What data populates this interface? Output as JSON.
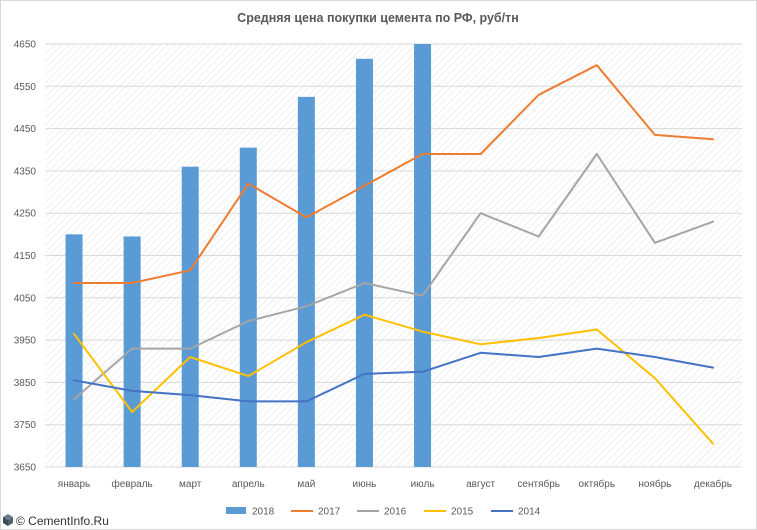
{
  "chart_data": {
    "type": "line",
    "title": "Средняя цена покупки цемента по РФ, руб/тн",
    "categories": [
      "январь",
      "февраль",
      "март",
      "апрель",
      "май",
      "июнь",
      "июль",
      "август",
      "сентябрь",
      "октябрь",
      "ноябрь",
      "декабрь"
    ],
    "ylim": [
      3650,
      4650
    ],
    "yticks": [
      3650,
      3750,
      3850,
      3950,
      4050,
      4150,
      4250,
      4350,
      4450,
      4550,
      4650
    ],
    "grid": true,
    "legend": "bottom",
    "series": [
      {
        "name": "2018",
        "type": "bar",
        "color": "#5b9bd5",
        "values": [
          4200,
          4195,
          4360,
          4405,
          4525,
          4615,
          4650,
          null,
          null,
          null,
          null,
          null
        ]
      },
      {
        "name": "2017",
        "type": "line",
        "color": "#ed7d31",
        "values": [
          4085,
          4085,
          4115,
          4320,
          4240,
          4315,
          4390,
          4390,
          4530,
          4600,
          4435,
          4425
        ]
      },
      {
        "name": "2016",
        "type": "line",
        "color": "#a5a5a5",
        "values": [
          3810,
          3930,
          3930,
          3995,
          4030,
          4085,
          4055,
          4250,
          4195,
          4390,
          4180,
          4230
        ]
      },
      {
        "name": "2015",
        "type": "line",
        "color": "#ffc000",
        "values": [
          3965,
          3780,
          3910,
          3865,
          3945,
          4010,
          3970,
          3940,
          3955,
          3975,
          3860,
          3705
        ]
      },
      {
        "name": "2014",
        "type": "line",
        "color": "#4472c4",
        "values": [
          3855,
          3830,
          3820,
          3805,
          3805,
          3870,
          3875,
          3920,
          3910,
          3930,
          3910,
          3885
        ]
      }
    ]
  },
  "watermark": "© CementInfo.Ru"
}
